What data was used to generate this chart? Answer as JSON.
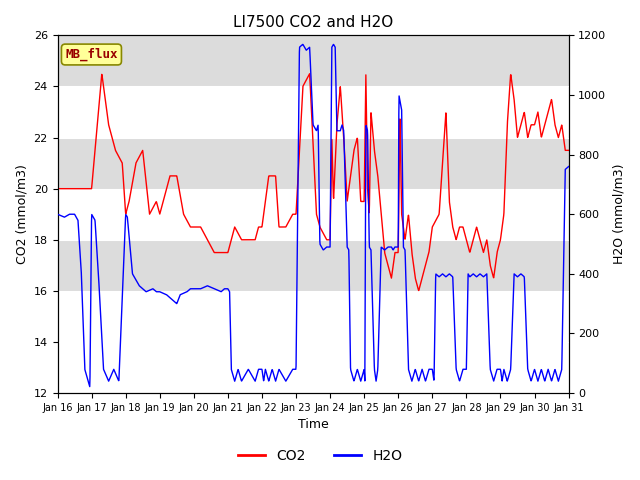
{
  "title": "LI7500 CO2 and H2O",
  "xlabel": "Time",
  "ylabel_left": "CO2 (mmol/m3)",
  "ylabel_right": "H2O (mmol/m3)",
  "ylim_left": [
    12,
    26
  ],
  "ylim_right": [
    0,
    1200
  ],
  "yticks_left": [
    12,
    14,
    16,
    18,
    20,
    22,
    24,
    26
  ],
  "yticks_right": [
    0,
    200,
    400,
    600,
    800,
    1000,
    1200
  ],
  "x_tick_labels": [
    "Jan 16",
    "Jan 17",
    "Jan 18",
    "Jan 19",
    "Jan 20",
    "Jan 21",
    "Jan 22",
    "Jan 23",
    "Jan 24",
    "Jan 25",
    "Jan 26",
    "Jan 27",
    "Jan 28",
    "Jan 29",
    "Jan 30",
    "Jan 31"
  ],
  "legend_label_co2": "CO2",
  "legend_label_h2o": "H2O",
  "co2_color": "#ff0000",
  "h2o_color": "#0000ff",
  "annotation_text": "MB_flux",
  "annotation_bg": "#ffff99",
  "annotation_border": "#888800",
  "bg_band_color": "#dcdcdc",
  "title_fontsize": 11,
  "axis_fontsize": 9,
  "tick_fontsize": 8,
  "legend_fontsize": 10
}
